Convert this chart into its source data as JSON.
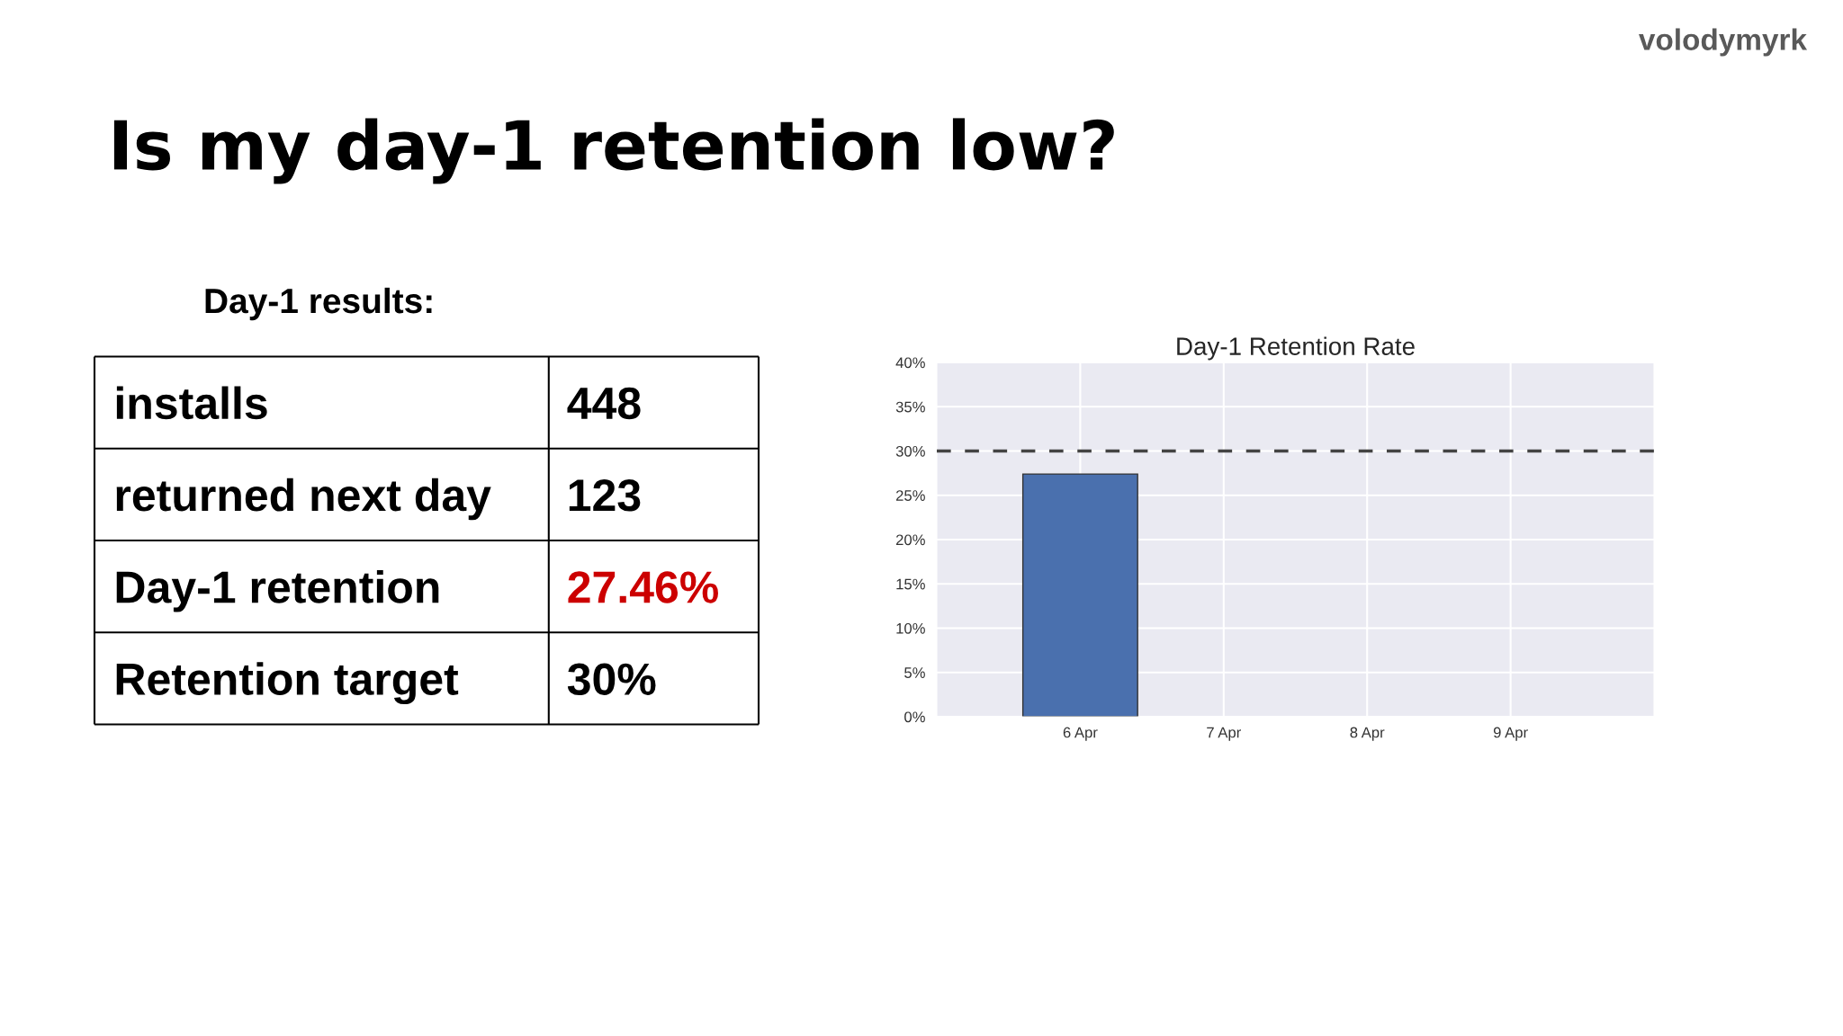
{
  "chart_data": [
    {
      "type": "other",
      "title": "Is my day-1 retention low?",
      "subtitle": "Day-1 results:",
      "categories": [
        "installs",
        "returned next day",
        "Day-1 retention",
        "Retention target"
      ],
      "value_labels": [
        "448",
        "123",
        "27.46%",
        "30%"
      ],
      "colors": [
        "#000000",
        "#000000",
        "#cc0000",
        "#000000"
      ],
      "annotations": [
        "volodymyrk"
      ]
    },
    {
      "type": "bar",
      "title": "Day-1 Retention Rate",
      "categories": [
        "6 Apr",
        "7 Apr",
        "8 Apr",
        "9 Apr"
      ],
      "values": [
        27.4,
        null,
        null,
        null
      ],
      "color": "#4a70ae",
      "ylim": [
        0,
        40
      ],
      "yticks": [
        {
          "value": 0,
          "label": "0%"
        },
        {
          "value": 5,
          "label": "5%"
        },
        {
          "value": 10,
          "label": "10%"
        },
        {
          "value": 15,
          "label": "15%"
        },
        {
          "value": 20,
          "label": "20%"
        },
        {
          "value": 25,
          "label": "25%"
        },
        {
          "value": 30,
          "label": "30%"
        },
        {
          "value": 35,
          "label": "35%"
        },
        {
          "value": 40,
          "label": "40%"
        }
      ],
      "grid": true,
      "ref_lines": [
        {
          "axis": "y",
          "value": 30,
          "color": "#444444",
          "line_style": "dashed"
        }
      ]
    }
  ]
}
